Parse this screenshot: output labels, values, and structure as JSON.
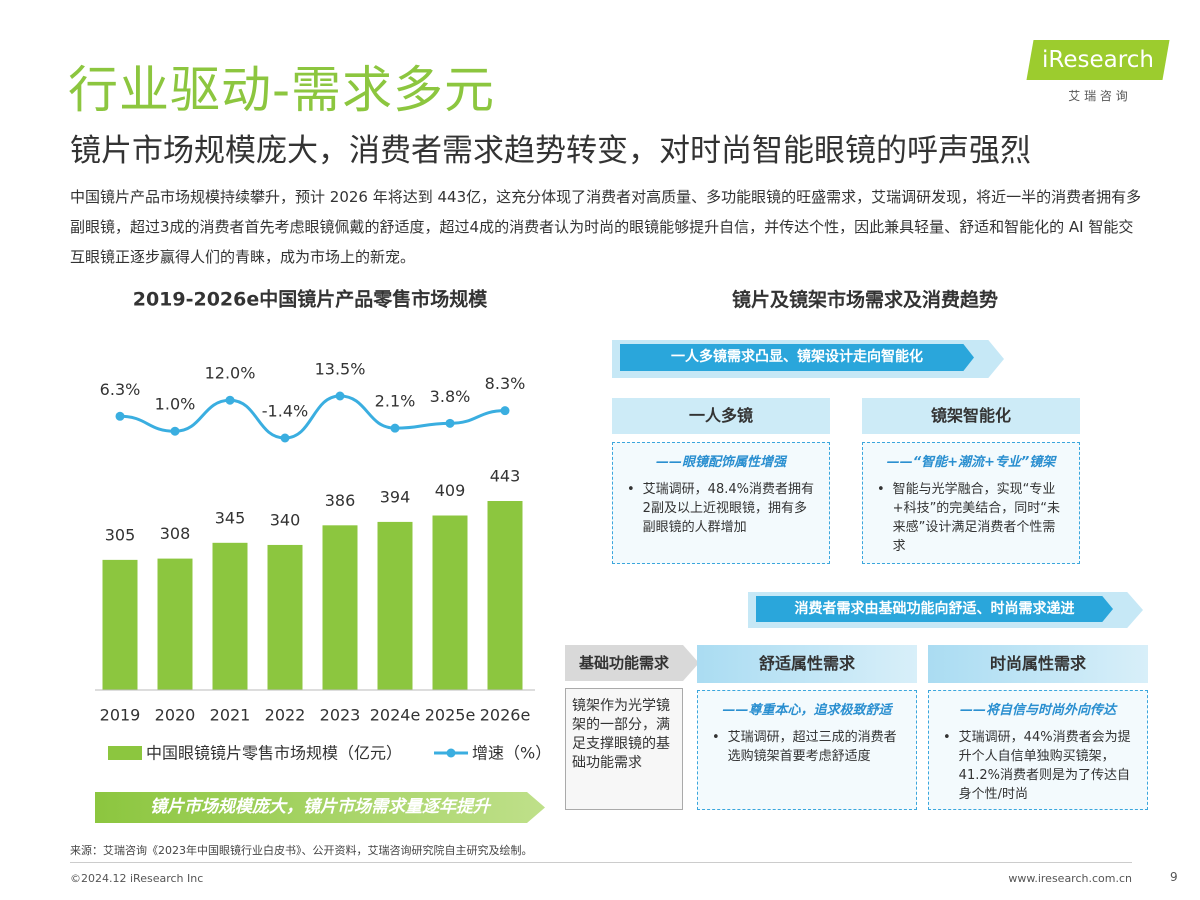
{
  "logo": {
    "brand": "iResearch",
    "chinese": "艾 瑞 咨 询"
  },
  "header": {
    "title": "行业驱动-需求多元",
    "subtitle": "镜片市场规模庞大，消费者需求趋势转变，对时尚智能眼镜的呼声强烈"
  },
  "intro": "中国镜片产品市场规模持续攀升，预计 2026 年将达到 443亿，这充分体现了消费者对高质量、多功能眼镜的旺盛需求，艾瑞调研发现，将近一半的消费者拥有多副眼镜，超过3成的消费者首先考虑眼镜佩戴的舒适度，超过4成的消费者认为时尚的眼镜能够提升自信，并传达个性，因此兼具轻量、舒适和智能化的 AI 智能交互眼镜正逐步赢得人们的青睐，成为市场上的新宠。",
  "chart_data": {
    "type": "bar",
    "title": "2019-2026e中国镜片产品零售市场规模",
    "categories": [
      "2019",
      "2020",
      "2021",
      "2022",
      "2023",
      "2024e",
      "2025e",
      "2026e"
    ],
    "series": [
      {
        "name": "中国眼镜镜片零售市场规模（亿元）",
        "type": "bar",
        "color": "#8cc63f",
        "values": [
          305,
          308,
          345,
          340,
          386,
          394,
          409,
          443
        ]
      },
      {
        "name": "增速（%）",
        "type": "line",
        "color": "#3aaee0",
        "values": [
          6.3,
          1.0,
          12.0,
          -1.4,
          13.5,
          2.1,
          3.8,
          8.3
        ],
        "value_labels": [
          "6.3%",
          "1.0%",
          "12.0%",
          "-1.4%",
          "13.5%",
          "2.1%",
          "3.8%",
          "8.3%"
        ]
      }
    ],
    "legend": "bottom"
  },
  "chart_banner": "镜片市场规模庞大，镜片市场需求量逐年提升",
  "trends": {
    "title": "镜片及镜架市场需求及消费趋势",
    "banner1": "一人多镜需求凸显、镜架设计走向智能化",
    "cards": [
      {
        "title": "一人多镜",
        "tagline": "——眼镜配饰属性增强",
        "bullet": "艾瑞调研，48.4%消费者拥有2副及以上近视眼镜，拥有多副眼镜的人群增加"
      },
      {
        "title": "镜架智能化",
        "tagline": "——“智能+潮流+专业”镜架",
        "bullet": "智能与光学融合，实现“专业+科技”的完美结合，同时“未来感”设计满足消费者个性需求"
      }
    ],
    "banner2": "消费者需求由基础功能向舒适、时尚需求递进",
    "stages": [
      {
        "title": "基础功能需求",
        "text": "镜架作为光学镜架的一部分，满足支撑眼镜的基础功能需求"
      },
      {
        "title": "舒适属性需求",
        "tagline": "——尊重本心，追求极致舒适",
        "bullet": "艾瑞调研，超过三成的消费者选购镜架首要考虑舒适度"
      },
      {
        "title": "时尚属性需求",
        "tagline": "——将自信与时尚外向传达",
        "bullet": "艾瑞调研，44%消费者会为提升个人自信单独购买镜架，41.2%消费者则是为了传达自身个性/时尚"
      }
    ]
  },
  "footer": {
    "source": "来源：艾瑞咨询《2023年中国眼镜行业白皮书》、公开资料，艾瑞咨询研究院自主研究及绘制。",
    "copyright": "©2024.12 iResearch Inc",
    "website": "www.iresearch.com.cn",
    "page": "9"
  }
}
